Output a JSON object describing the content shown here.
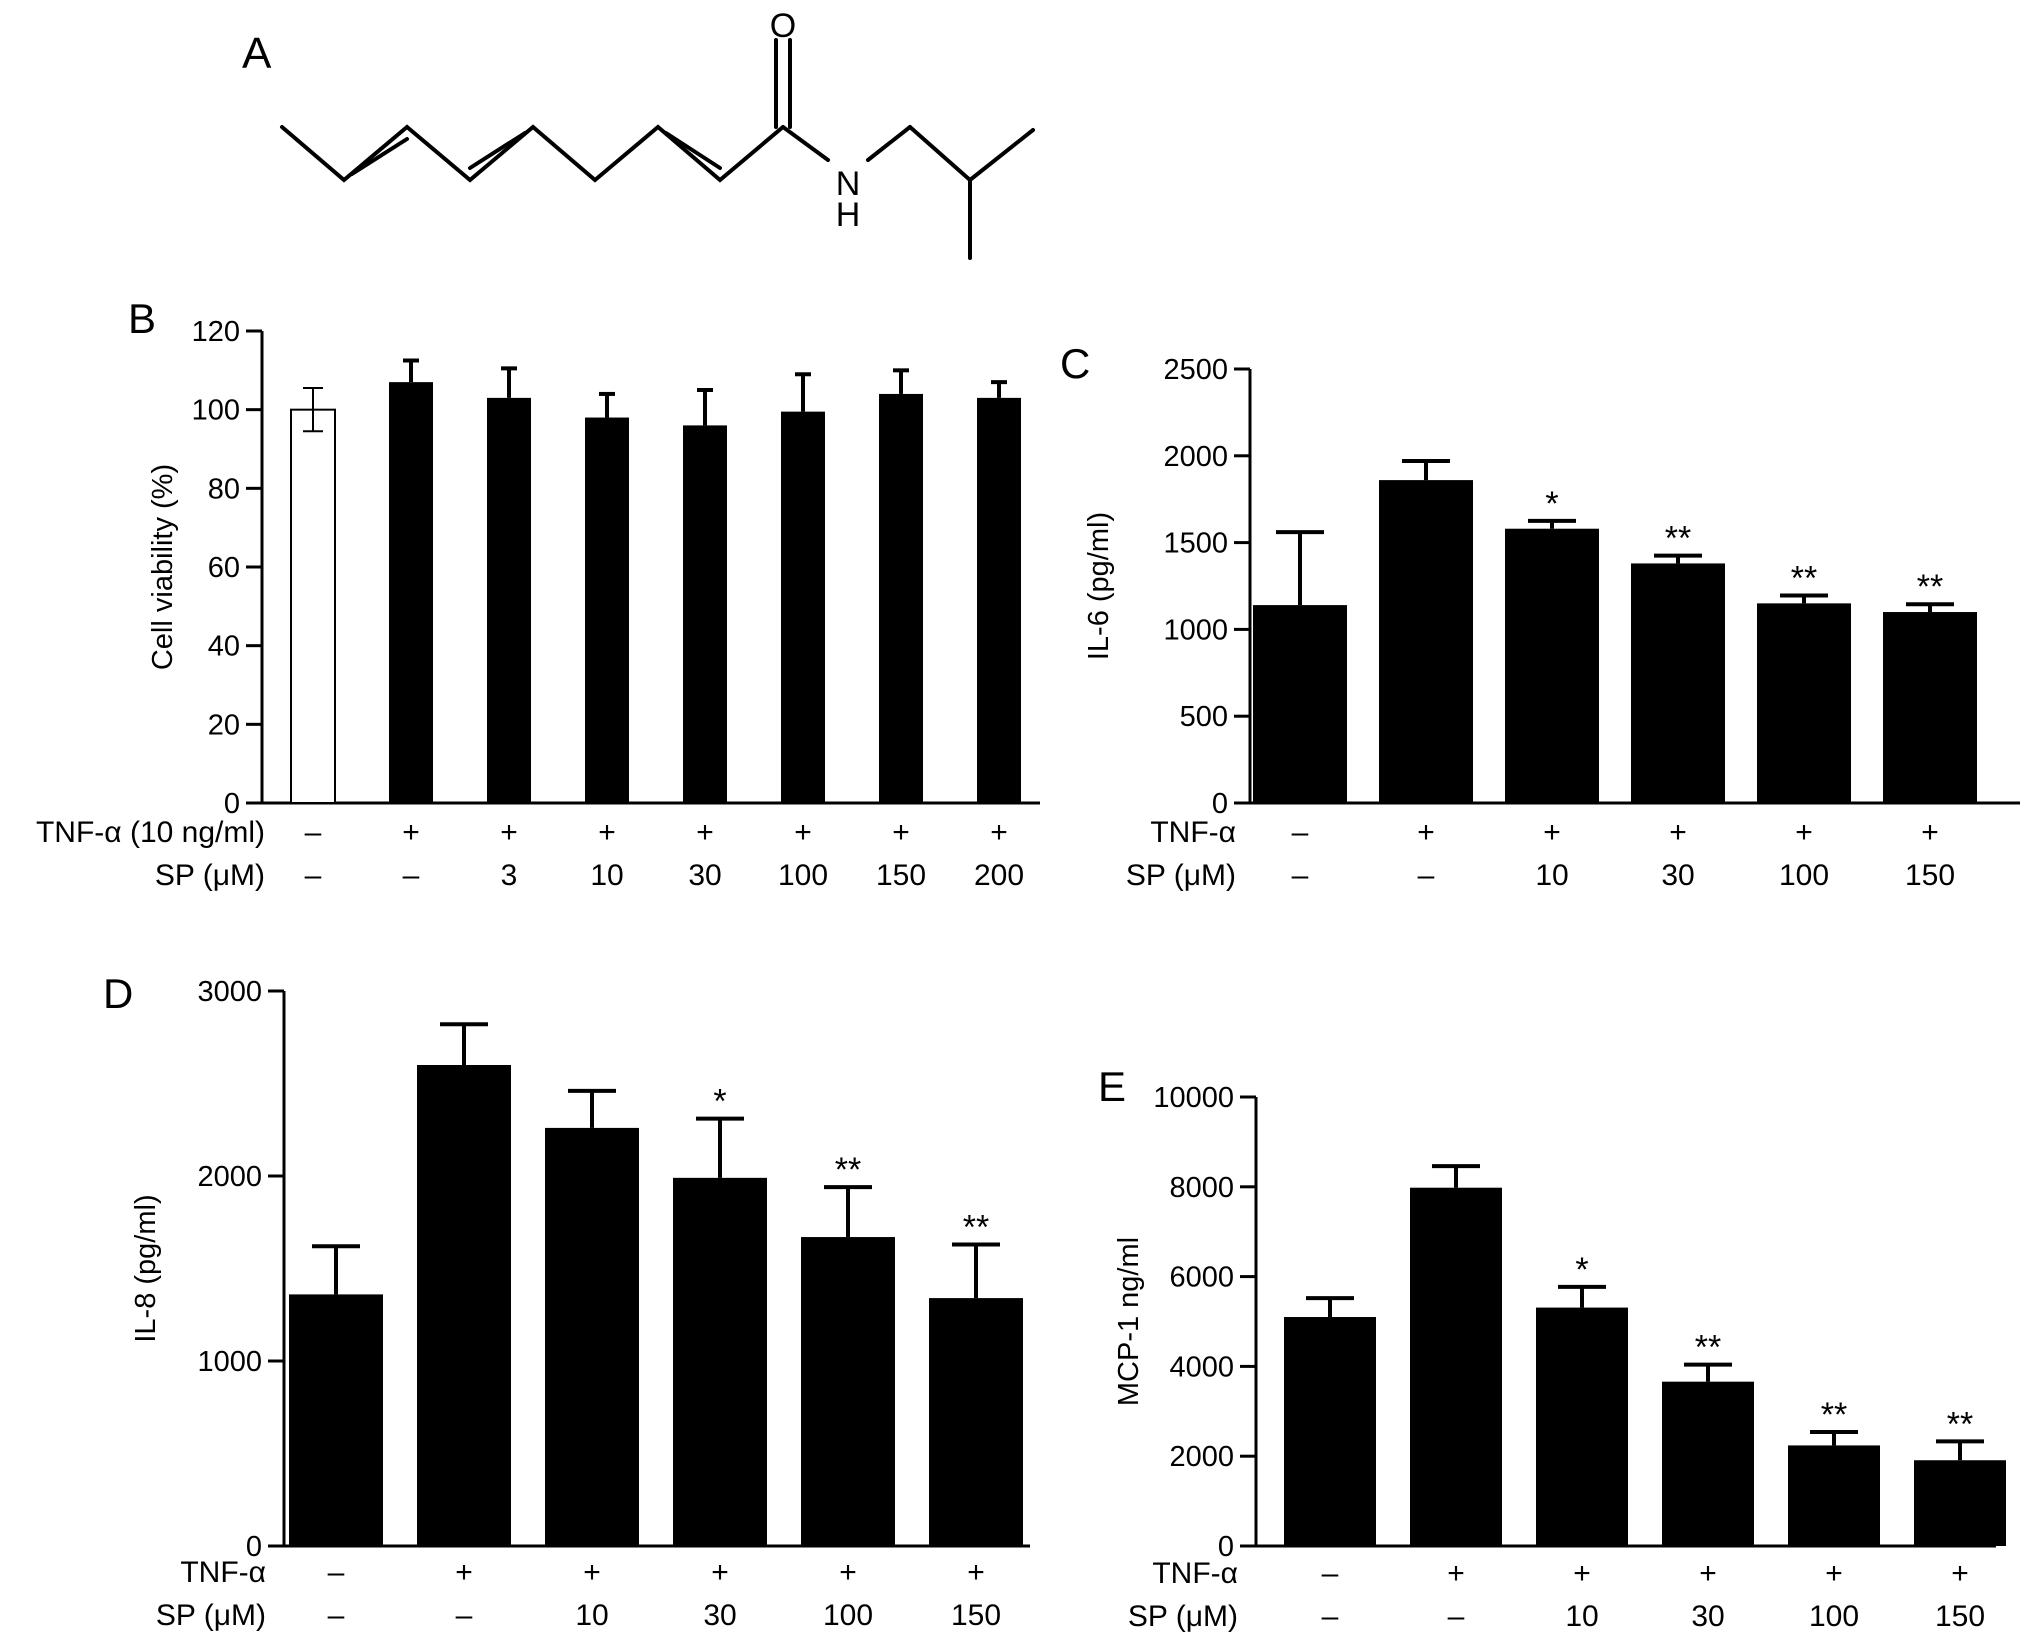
{
  "panels": {
    "A": {
      "label": "A",
      "atoms": {
        "oxygen": "O",
        "nitrogen": "N",
        "hydrogen": "H"
      }
    }
  },
  "chart_data": [
    {
      "panel": "B",
      "type": "bar",
      "ylabel": "Cell viability (%)",
      "ylim": [
        0,
        120
      ],
      "yticks": [
        "0",
        "20",
        "40",
        "60",
        "80",
        "100",
        "120"
      ],
      "row_labels": [
        "TNF-α (10 ng/ml)",
        "SP (μM)"
      ],
      "rows": [
        [
          "–",
          "+",
          "+",
          "+",
          "+",
          "+",
          "+",
          "+"
        ],
        [
          "–",
          "–",
          "3",
          "10",
          "30",
          "100",
          "150",
          "200"
        ]
      ],
      "values": [
        100,
        107,
        103,
        98,
        96,
        99.5,
        104,
        103
      ],
      "errors": [
        5.5,
        5.5,
        7.5,
        6,
        9,
        9.5,
        6,
        4
      ],
      "fills": [
        "#ffffff",
        "#000000",
        "#000000",
        "#000000",
        "#000000",
        "#000000",
        "#000000",
        "#000000"
      ],
      "stars": [
        "",
        "",
        "",
        "",
        "",
        "",
        "",
        ""
      ]
    },
    {
      "panel": "C",
      "type": "bar",
      "ylabel": "IL-6 (pg/ml)",
      "ylim": [
        0,
        2500
      ],
      "yticks": [
        "0",
        "500",
        "1000",
        "1500",
        "2000",
        "2500"
      ],
      "row_labels": [
        "TNF-α",
        "SP (μM)"
      ],
      "rows": [
        [
          "–",
          "+",
          "+",
          "+",
          "+",
          "+"
        ],
        [
          "–",
          "–",
          "10",
          "30",
          "100",
          "150"
        ]
      ],
      "values": [
        1140,
        1860,
        1580,
        1380,
        1150,
        1100
      ],
      "errors": [
        420,
        110,
        45,
        45,
        45,
        45
      ],
      "fills": [
        "#000000",
        "#000000",
        "#000000",
        "#000000",
        "#000000",
        "#000000"
      ],
      "stars": [
        "",
        "",
        "*",
        "**",
        "**",
        "**"
      ]
    },
    {
      "panel": "D",
      "type": "bar",
      "ylabel": "IL-8 (pg/ml)",
      "ylim": [
        0,
        3000
      ],
      "yticks": [
        "0",
        "1000",
        "2000",
        "3000"
      ],
      "row_labels": [
        "TNF-α",
        "SP (μM)"
      ],
      "rows": [
        [
          "–",
          "+",
          "+",
          "+",
          "+",
          "+"
        ],
        [
          "–",
          "–",
          "10",
          "30",
          "100",
          "150"
        ]
      ],
      "values": [
        1360,
        2600,
        2260,
        1990,
        1670,
        1340
      ],
      "errors": [
        260,
        220,
        200,
        320,
        270,
        290
      ],
      "fills": [
        "#000000",
        "#000000",
        "#000000",
        "#000000",
        "#000000",
        "#000000"
      ],
      "stars": [
        "",
        "",
        "",
        "*",
        "**",
        "**"
      ]
    },
    {
      "panel": "E",
      "type": "bar",
      "ylabel": "MCP-1 ng/ml",
      "ylim": [
        0,
        10000
      ],
      "yticks": [
        "0",
        "2000",
        "4000",
        "6000",
        "8000",
        "10000"
      ],
      "row_labels": [
        "TNF-α",
        "SP (μM)"
      ],
      "rows": [
        [
          "–",
          "+",
          "+",
          "+",
          "+",
          "+"
        ],
        [
          "–",
          "–",
          "10",
          "30",
          "100",
          "150"
        ]
      ],
      "values": [
        5100,
        7980,
        5310,
        3660,
        2240,
        1910
      ],
      "errors": [
        420,
        480,
        460,
        380,
        300,
        420
      ],
      "fills": [
        "#000000",
        "#000000",
        "#000000",
        "#000000",
        "#000000",
        "#000000"
      ],
      "stars": [
        "",
        "",
        "*",
        "**",
        "**",
        "**"
      ]
    }
  ]
}
